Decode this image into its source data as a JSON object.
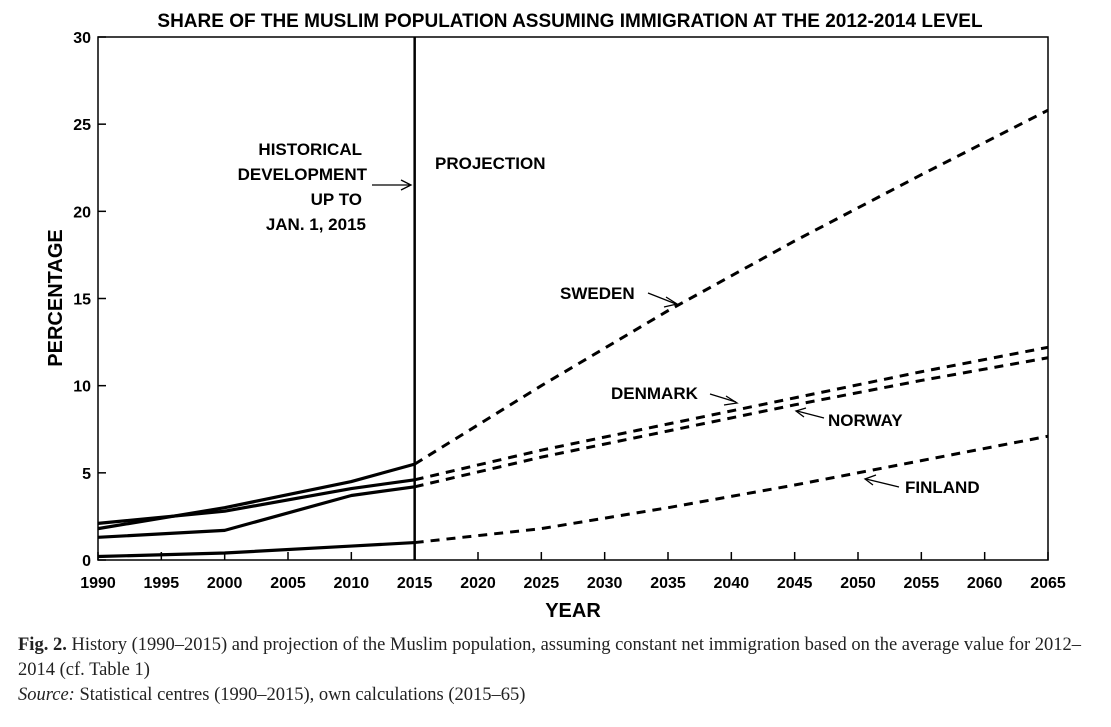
{
  "chart_data": {
    "type": "line",
    "title": "SHARE OF THE MUSLIM POPULATION ASSUMING IMMIGRATION AT THE 2012-2014 LEVEL",
    "xlabel": "YEAR",
    "ylabel": "PERCENTAGE",
    "xlim": [
      1990,
      2065
    ],
    "ylim": [
      0,
      30
    ],
    "x_ticks": [
      "1990",
      "1995",
      "2000",
      "2005",
      "2010",
      "2015",
      "2020",
      "2025",
      "2030",
      "2035",
      "2040",
      "2045",
      "2050",
      "2055",
      "2060",
      "2065"
    ],
    "y_ticks": [
      "0",
      "5",
      "10",
      "15",
      "20",
      "25",
      "30"
    ],
    "divider_year": 2015,
    "grid": false,
    "annotations": {
      "historical": [
        "HISTORICAL",
        "DEVELOPMENT",
        "UP TO",
        "JAN. 1, 2015"
      ],
      "projection": "PROJECTION"
    },
    "series": [
      {
        "name": "SWEDEN",
        "historical": {
          "x": [
            1990,
            2000,
            2010,
            2015
          ],
          "y": [
            1.8,
            3.0,
            4.5,
            5.5
          ]
        },
        "projection": {
          "x": [
            2015,
            2025,
            2035,
            2045,
            2055,
            2065
          ],
          "y": [
            5.5,
            10.0,
            14.3,
            18.3,
            22.1,
            25.8
          ]
        }
      },
      {
        "name": "DENMARK",
        "historical": {
          "x": [
            1990,
            2000,
            2010,
            2015
          ],
          "y": [
            2.1,
            2.8,
            4.1,
            4.6
          ]
        },
        "projection": {
          "x": [
            2015,
            2025,
            2035,
            2045,
            2055,
            2065
          ],
          "y": [
            4.6,
            6.3,
            7.8,
            9.3,
            10.8,
            12.2
          ]
        }
      },
      {
        "name": "NORWAY",
        "historical": {
          "x": [
            1990,
            2000,
            2010,
            2015
          ],
          "y": [
            1.3,
            1.7,
            3.7,
            4.2
          ]
        },
        "projection": {
          "x": [
            2015,
            2025,
            2035,
            2045,
            2055,
            2065
          ],
          "y": [
            4.2,
            5.9,
            7.4,
            8.9,
            10.3,
            11.6
          ]
        }
      },
      {
        "name": "FINLAND",
        "historical": {
          "x": [
            1990,
            2000,
            2010,
            2015
          ],
          "y": [
            0.2,
            0.4,
            0.8,
            1.0
          ]
        },
        "projection": {
          "x": [
            2015,
            2025,
            2035,
            2045,
            2055,
            2065
          ],
          "y": [
            1.0,
            1.8,
            3.0,
            4.3,
            5.7,
            7.1
          ]
        }
      }
    ]
  },
  "caption": {
    "fig_label": "Fig. 2.",
    "text": " History (1990–2015) and projection of the Muslim population, assuming constant net immigration based on the average value for 2012–2014 (cf. Table 1)",
    "source_label": "Source:",
    "source_text": " Statistical centres (1990–2015), own calculations (2015–65)"
  }
}
